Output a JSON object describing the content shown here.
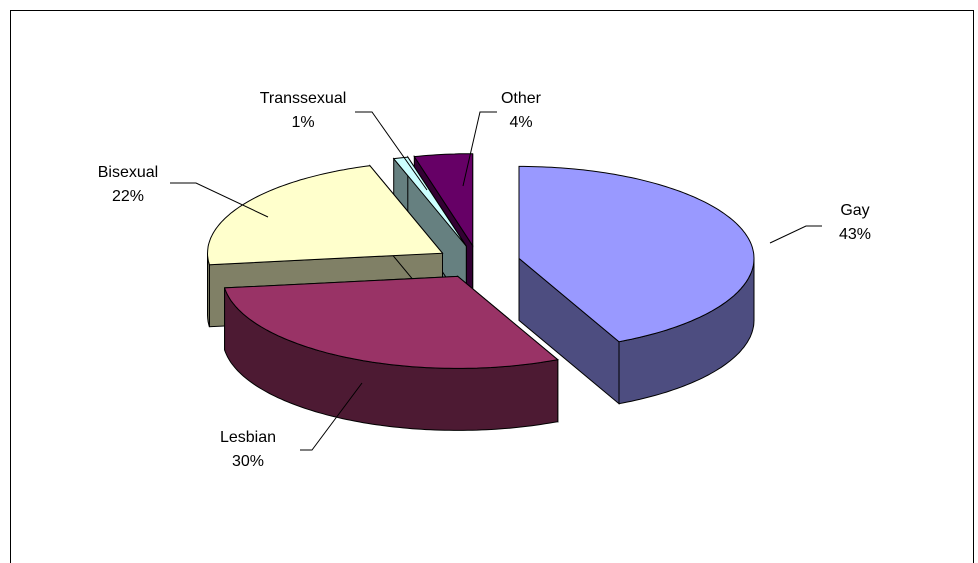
{
  "chart_data": {
    "type": "pie",
    "categories": [
      "Gay",
      "Lesbian",
      "Bisexual",
      "Transsexual",
      "Other"
    ],
    "values": [
      43,
      30,
      22,
      1,
      4
    ],
    "value_labels": [
      "43%",
      "30%",
      "22%",
      "1%",
      "4%"
    ],
    "colors": [
      "#9999ff",
      "#993366",
      "#ffffcc",
      "#ccffff",
      "#660066"
    ]
  }
}
